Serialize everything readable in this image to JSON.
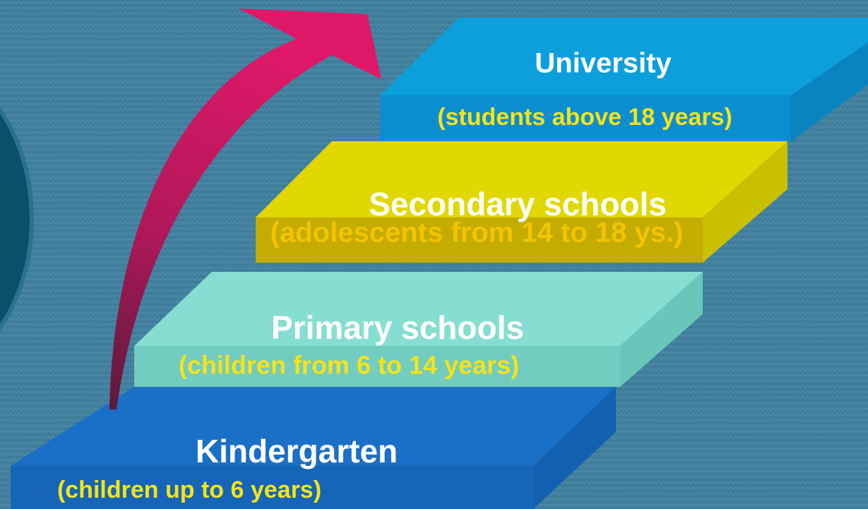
{
  "steps": [
    {
      "title": "Kindergarten",
      "subtitle": "(children up to 6 years)"
    },
    {
      "title": "Primary schools",
      "subtitle": "(children from 6 to 14 years)"
    },
    {
      "title": "Secondary schools",
      "subtitle": "(adolescents from 14 to 18 ys.)"
    },
    {
      "title": "University",
      "subtitle": "(students above 18 years)"
    }
  ]
}
